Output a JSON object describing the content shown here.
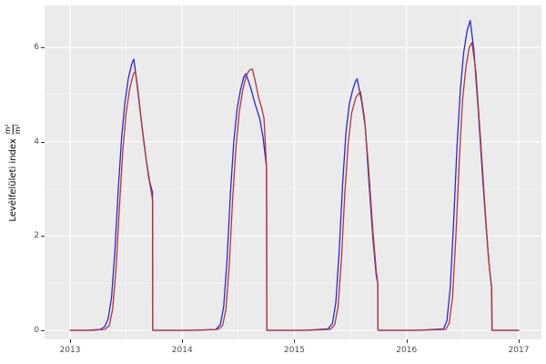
{
  "figure": {
    "background": "#ffffff",
    "panel_background": "#ebebeb",
    "grid_major_color": "#ffffff",
    "grid_minor_color": "#f7f7f7",
    "tick_color": "#333333",
    "tick_label_color": "#4d4d4d"
  },
  "y_axis": {
    "title": "Levélfelületi index",
    "unit_numerator": "m²",
    "unit_denominator": "m²"
  },
  "chart_data": {
    "type": "line",
    "title": "",
    "xlabel": "",
    "ylabel": "Levélfelületi index (m²/m²)",
    "grid": true,
    "legend": "none",
    "xlim": [
      2012.773,
      2017.203
    ],
    "ylim": [
      -0.193,
      6.888
    ],
    "x_ticks": [
      2013,
      2014,
      2015,
      2016,
      2017
    ],
    "x_tick_labels": [
      "2013",
      "2014",
      "2015",
      "2016",
      "2017"
    ],
    "x_minor": [
      2013.5,
      2014.5,
      2015.5,
      2016.5
    ],
    "y_ticks": [
      0,
      2,
      4,
      6
    ],
    "y_tick_labels": [
      "0",
      "2",
      "4",
      "6"
    ],
    "y_minor": [
      1,
      3,
      5
    ],
    "series": [
      {
        "name": "blue",
        "color": "#2828d4",
        "points": [
          [
            2013.0,
            0
          ],
          [
            2013.15,
            0
          ],
          [
            2013.27,
            0.02
          ],
          [
            2013.31,
            0.08
          ],
          [
            2013.34,
            0.25
          ],
          [
            2013.37,
            0.7
          ],
          [
            2013.4,
            1.7
          ],
          [
            2013.43,
            3.0
          ],
          [
            2013.46,
            4.1
          ],
          [
            2013.49,
            4.85
          ],
          [
            2013.52,
            5.35
          ],
          [
            2013.55,
            5.65
          ],
          [
            2013.568,
            5.75
          ],
          [
            2013.6,
            5.2
          ],
          [
            2013.64,
            4.35
          ],
          [
            2013.68,
            3.6
          ],
          [
            2013.71,
            3.15
          ],
          [
            2013.735,
            2.92
          ],
          [
            2013.738,
            0
          ],
          [
            2014.1,
            0
          ],
          [
            2014.3,
            0.02
          ],
          [
            2014.34,
            0.12
          ],
          [
            2014.37,
            0.5
          ],
          [
            2014.4,
            1.5
          ],
          [
            2014.43,
            2.9
          ],
          [
            2014.46,
            4.0
          ],
          [
            2014.49,
            4.7
          ],
          [
            2014.52,
            5.1
          ],
          [
            2014.55,
            5.38
          ],
          [
            2014.568,
            5.44
          ],
          [
            2014.61,
            5.15
          ],
          [
            2014.65,
            4.8
          ],
          [
            2014.69,
            4.5
          ],
          [
            2014.72,
            4.1
          ],
          [
            2014.74,
            3.7
          ],
          [
            2014.752,
            3.45
          ],
          [
            2014.754,
            0
          ],
          [
            2015.1,
            0
          ],
          [
            2015.3,
            0.03
          ],
          [
            2015.34,
            0.15
          ],
          [
            2015.37,
            0.6
          ],
          [
            2015.4,
            1.7
          ],
          [
            2015.43,
            3.1
          ],
          [
            2015.46,
            4.2
          ],
          [
            2015.49,
            4.8
          ],
          [
            2015.52,
            5.1
          ],
          [
            2015.545,
            5.28
          ],
          [
            2015.56,
            5.33
          ],
          [
            2015.6,
            4.85
          ],
          [
            2015.633,
            4.3
          ],
          [
            2015.665,
            3.15
          ],
          [
            2015.7,
            1.95
          ],
          [
            2015.73,
            1.15
          ],
          [
            2015.743,
            1.0
          ],
          [
            2015.746,
            0
          ],
          [
            2016.1,
            0
          ],
          [
            2016.33,
            0.03
          ],
          [
            2016.36,
            0.2
          ],
          [
            2016.39,
            0.9
          ],
          [
            2016.42,
            2.3
          ],
          [
            2016.45,
            3.9
          ],
          [
            2016.48,
            5.1
          ],
          [
            2016.51,
            5.9
          ],
          [
            2016.54,
            6.35
          ],
          [
            2016.568,
            6.57
          ],
          [
            2016.6,
            5.95
          ],
          [
            2016.64,
            4.65
          ],
          [
            2016.68,
            3.2
          ],
          [
            2016.71,
            2.2
          ],
          [
            2016.74,
            1.3
          ],
          [
            2016.758,
            0.92
          ],
          [
            2016.762,
            0
          ],
          [
            2017.0,
            0
          ]
        ]
      },
      {
        "name": "red",
        "color": "#b33636",
        "points": [
          [
            2013.0,
            0
          ],
          [
            2013.2,
            0
          ],
          [
            2013.31,
            0.02
          ],
          [
            2013.35,
            0.1
          ],
          [
            2013.38,
            0.45
          ],
          [
            2013.41,
            1.3
          ],
          [
            2013.44,
            2.6
          ],
          [
            2013.47,
            3.8
          ],
          [
            2013.5,
            4.6
          ],
          [
            2013.53,
            5.1
          ],
          [
            2013.56,
            5.4
          ],
          [
            2013.582,
            5.5
          ],
          [
            2013.62,
            4.75
          ],
          [
            2013.66,
            3.95
          ],
          [
            2013.7,
            3.25
          ],
          [
            2013.727,
            2.9
          ],
          [
            2013.736,
            2.75
          ],
          [
            2013.738,
            0
          ],
          [
            2014.1,
            0
          ],
          [
            2014.32,
            0.02
          ],
          [
            2014.36,
            0.1
          ],
          [
            2014.39,
            0.45
          ],
          [
            2014.42,
            1.4
          ],
          [
            2014.45,
            2.8
          ],
          [
            2014.48,
            3.9
          ],
          [
            2014.51,
            4.65
          ],
          [
            2014.54,
            5.1
          ],
          [
            2014.57,
            5.4
          ],
          [
            2014.6,
            5.52
          ],
          [
            2014.625,
            5.54
          ],
          [
            2014.65,
            5.3
          ],
          [
            2014.68,
            4.95
          ],
          [
            2014.71,
            4.7
          ],
          [
            2014.729,
            4.5
          ],
          [
            2014.752,
            3.45
          ],
          [
            2014.754,
            0
          ],
          [
            2015.1,
            0
          ],
          [
            2015.32,
            0.02
          ],
          [
            2015.36,
            0.12
          ],
          [
            2015.39,
            0.5
          ],
          [
            2015.42,
            1.5
          ],
          [
            2015.45,
            2.9
          ],
          [
            2015.48,
            3.95
          ],
          [
            2015.51,
            4.6
          ],
          [
            2015.55,
            4.95
          ],
          [
            2015.59,
            5.06
          ],
          [
            2015.625,
            4.5
          ],
          [
            2015.66,
            3.5
          ],
          [
            2015.7,
            2.1
          ],
          [
            2015.73,
            1.25
          ],
          [
            2015.744,
            1.0
          ],
          [
            2015.746,
            0
          ],
          [
            2016.1,
            0
          ],
          [
            2016.35,
            0.02
          ],
          [
            2016.38,
            0.15
          ],
          [
            2016.41,
            0.7
          ],
          [
            2016.44,
            2.0
          ],
          [
            2016.47,
            3.6
          ],
          [
            2016.5,
            4.9
          ],
          [
            2016.53,
            5.6
          ],
          [
            2016.56,
            6.0
          ],
          [
            2016.584,
            6.1
          ],
          [
            2016.62,
            5.45
          ],
          [
            2016.66,
            4.05
          ],
          [
            2016.7,
            2.6
          ],
          [
            2016.73,
            1.55
          ],
          [
            2016.755,
            0.95
          ],
          [
            2016.76,
            0.88
          ],
          [
            2016.763,
            0
          ],
          [
            2017.0,
            0
          ]
        ]
      }
    ]
  }
}
